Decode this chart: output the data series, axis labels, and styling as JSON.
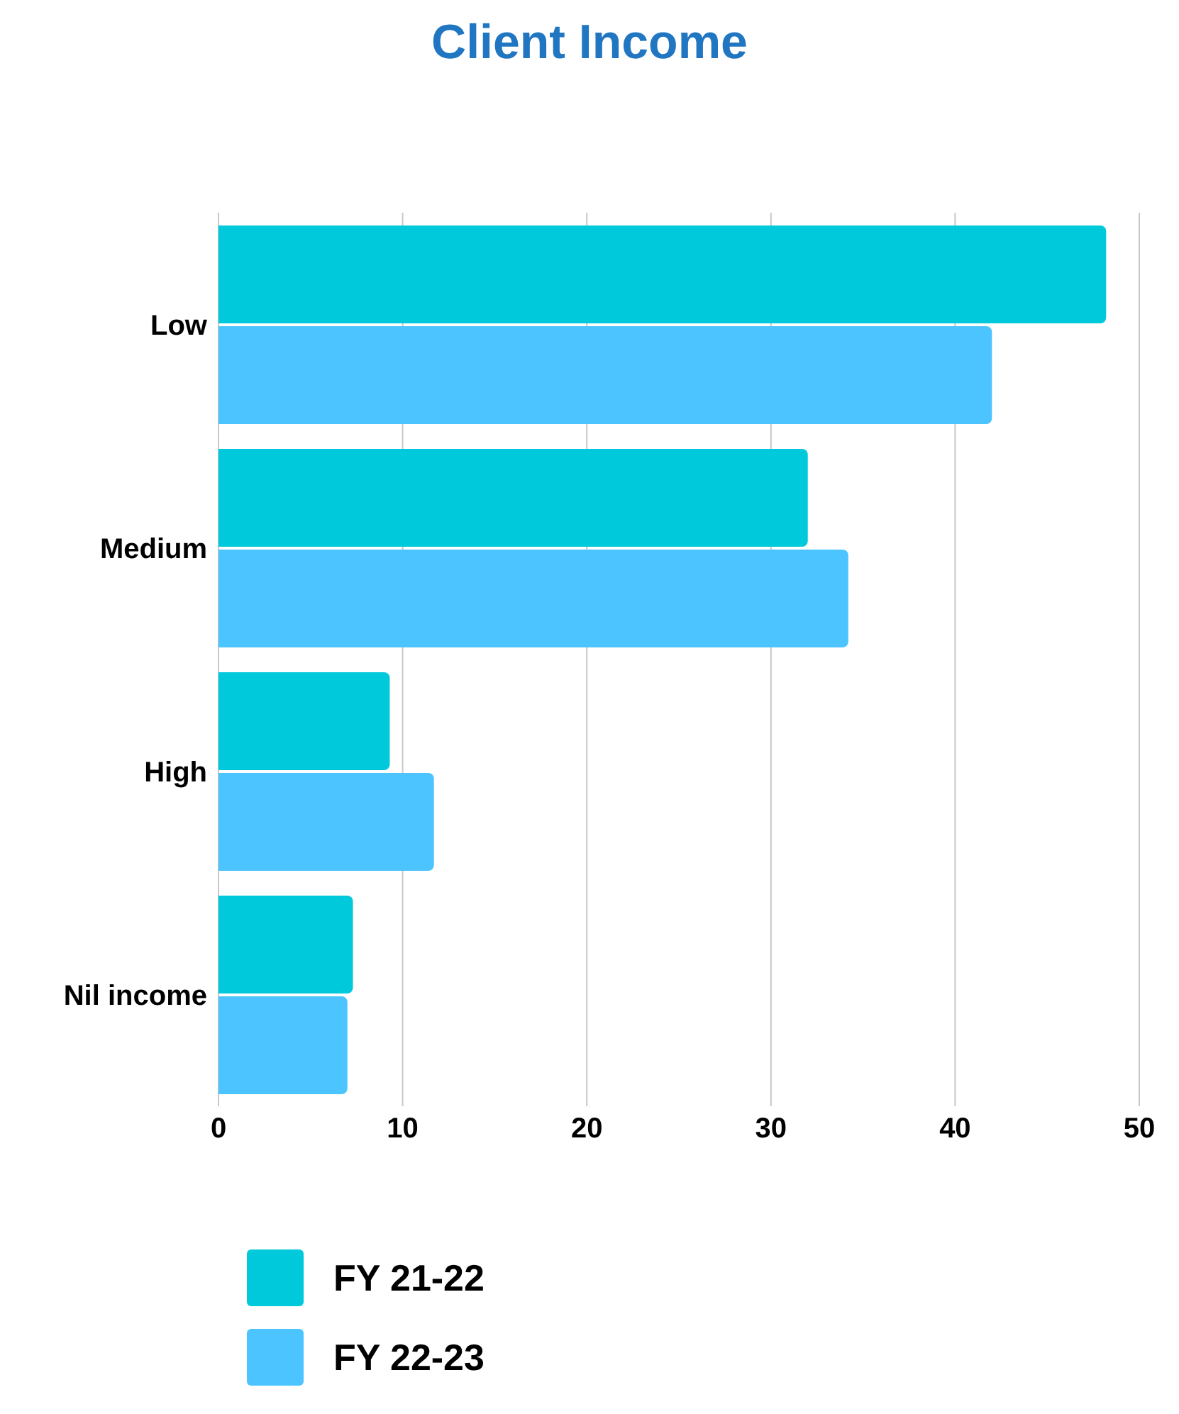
{
  "chart_data": {
    "type": "bar",
    "title": "Client Income",
    "orientation": "horizontal",
    "categories": [
      "Low",
      "Medium",
      "High",
      "Nil income"
    ],
    "series": [
      {
        "name": "FY 21-22",
        "color": "#00c9db",
        "values": [
          48.2,
          32,
          9.3,
          7.3
        ]
      },
      {
        "name": "FY 22-23",
        "color": "#4cc4ff",
        "values": [
          42,
          34.2,
          11.7,
          7
        ]
      }
    ],
    "xlim": [
      0,
      50
    ],
    "xticks": [
      0,
      10,
      20,
      30,
      40,
      50
    ],
    "grid": "x",
    "legend": "bottom left"
  }
}
